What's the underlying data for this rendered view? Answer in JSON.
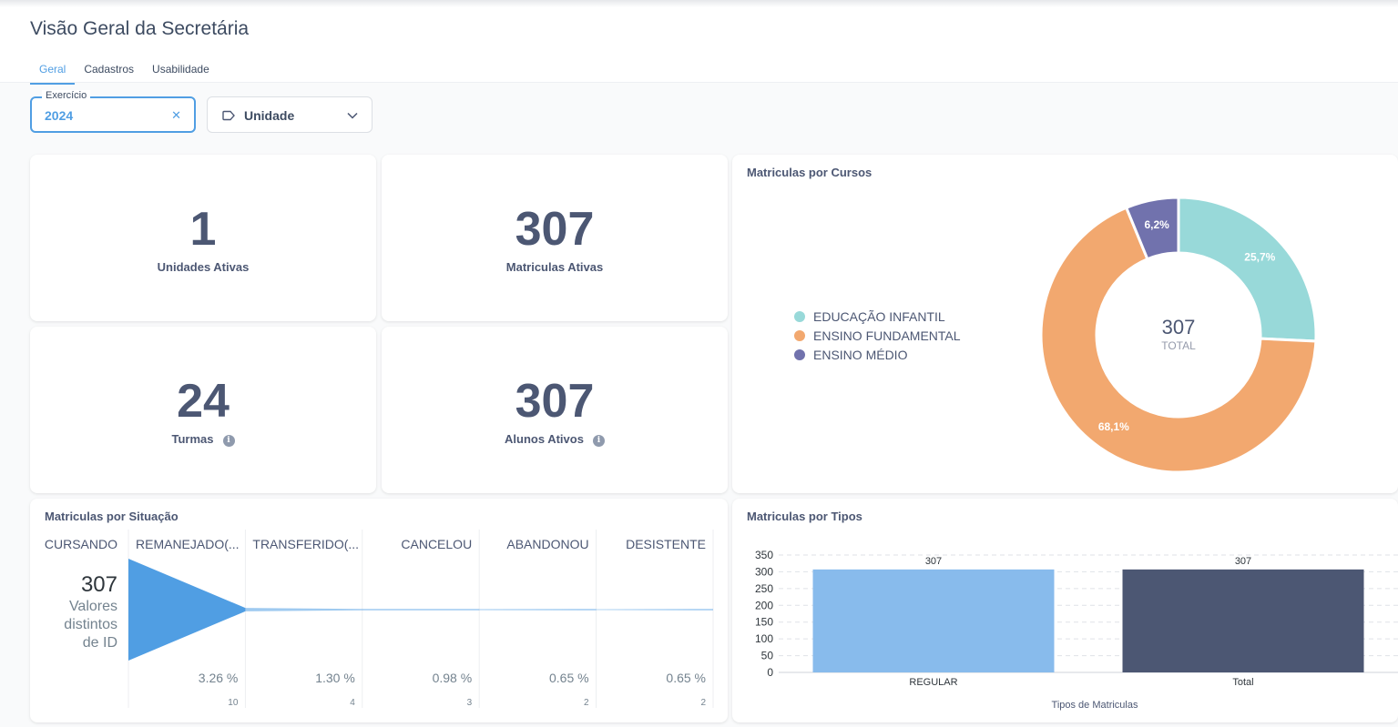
{
  "page": {
    "title": "Visão Geral da Secretária",
    "tabs": [
      "Geral",
      "Cadastros",
      "Usabilidade"
    ],
    "active_tab": "Geral"
  },
  "filters": {
    "exercicio": {
      "label": "Exercício",
      "value": "2024",
      "clear_icon": "close-icon"
    },
    "unidade": {
      "label": "Unidade",
      "icon": "tag-icon",
      "chevron": "chevron-down-icon"
    }
  },
  "kpis": [
    {
      "value": "1",
      "label": "Unidades Ativas"
    },
    {
      "value": "307",
      "label": "Matriculas Ativas"
    },
    {
      "value": "24",
      "label": "Turmas",
      "info": true
    },
    {
      "value": "307",
      "label": "Alunos Ativos",
      "info": true
    }
  ],
  "colors": {
    "accent": "#509ee3",
    "educacao_infantil": "#98d9d9",
    "ensino_fundamental": "#f2a86f",
    "ensino_medio": "#7172ad",
    "bar_regular": "#88bbec",
    "bar_total": "#4c5773",
    "funnel": "#509ee3"
  },
  "donut": {
    "title": "Matriculas por Cursos",
    "total_value": "307",
    "total_label": "TOTAL"
  },
  "funnel": {
    "title": "Matriculas por Situação",
    "metric_value": "307",
    "metric_label_lines": [
      "Valores",
      "distintos",
      "de ID"
    ]
  },
  "bars": {
    "title": "Matriculas por Tipos"
  },
  "chart_data": [
    {
      "type": "pie",
      "title": "Matriculas por Cursos",
      "categories": [
        "EDUCAÇÃO INFANTIL",
        "ENSINO FUNDAMENTAL",
        "ENSINO MÉDIO"
      ],
      "values": [
        79,
        209,
        19
      ],
      "percent_labels": [
        "25,7%",
        "68,1%",
        "6,2%"
      ],
      "legend": "left"
    },
    {
      "type": "table",
      "subtype": "funnel",
      "title": "Matriculas por Situação",
      "first_stage": {
        "label": "CURSANDO",
        "value": 307
      },
      "stages": [
        {
          "label": "REMANEJADO(...",
          "percent": "3.26 %",
          "value": 10
        },
        {
          "label": "TRANSFERIDO(...",
          "percent": "1.30 %",
          "value": 4
        },
        {
          "label": "CANCELOU",
          "percent": "0.98 %",
          "value": 3
        },
        {
          "label": "ABANDONOU",
          "percent": "0.65 %",
          "value": 2
        },
        {
          "label": "DESISTENTE",
          "percent": "0.65 %",
          "value": 2
        }
      ]
    },
    {
      "type": "bar",
      "title": "Matriculas por Tipos",
      "categories": [
        "REGULAR",
        "Total"
      ],
      "values": [
        307,
        307
      ],
      "xlabel": "Tipos de Matriculas",
      "ylabel": "",
      "ylim": [
        0,
        350
      ],
      "yticks": [
        350,
        300,
        250,
        200,
        150,
        100,
        50,
        0
      ],
      "grid": true
    }
  ]
}
